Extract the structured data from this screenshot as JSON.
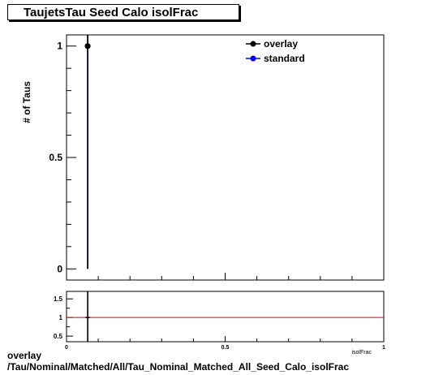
{
  "title": "TaujetsTau Seed Calo isolFrac",
  "caption": {
    "line1": "overlay",
    "line2": "/Tau/Nominal/Matched/All/Tau_Nominal_Matched_All_Seed_Calo_isolFrac"
  },
  "colors": {
    "overlay": "#000000",
    "standard": "#0000ff",
    "ratio_line": "#cc0000"
  },
  "chart_data": [
    {
      "type": "scatter",
      "ylabel": "# of Taus",
      "xlim": [
        0,
        1
      ],
      "ylim": [
        -0.05,
        1.05
      ],
      "y_ticks": [
        {
          "v": 0,
          "label": "0"
        },
        {
          "v": 0.5,
          "label": "0.5"
        },
        {
          "v": 1,
          "label": "1"
        }
      ],
      "legend": {
        "position": "top-right",
        "entries": [
          "overlay",
          "standard"
        ]
      },
      "series": [
        {
          "name": "overlay",
          "points": [
            {
              "x": 0.0667,
              "y": 1,
              "xerr": 0.0067,
              "ylow": 0,
              "yhigh": 1.05
            }
          ]
        },
        {
          "name": "standard",
          "points": [
            {
              "x": 0.0667,
              "y": 1,
              "xerr": 0.0067,
              "ylow": 0,
              "yhigh": 1.05
            }
          ]
        }
      ]
    },
    {
      "type": "line",
      "xlim": [
        0,
        1
      ],
      "ylim": [
        0.35,
        1.7
      ],
      "x_ticks": [
        {
          "v": 0,
          "label": "0"
        },
        {
          "v": 0.5,
          "label": "0.5"
        },
        {
          "v": 1,
          "label": "1"
        }
      ],
      "y_ticks": [
        {
          "v": 0.5,
          "label": "0.5"
        },
        {
          "v": 1,
          "label": "1"
        },
        {
          "v": 1.5,
          "label": "1.5"
        }
      ],
      "xlabel": "isolFrac",
      "reference_line": 1,
      "points": [
        {
          "x": 0.0667,
          "y": 1,
          "xerr": 0.0067,
          "ylow": 0.35,
          "yhigh": 1.7
        }
      ]
    }
  ]
}
